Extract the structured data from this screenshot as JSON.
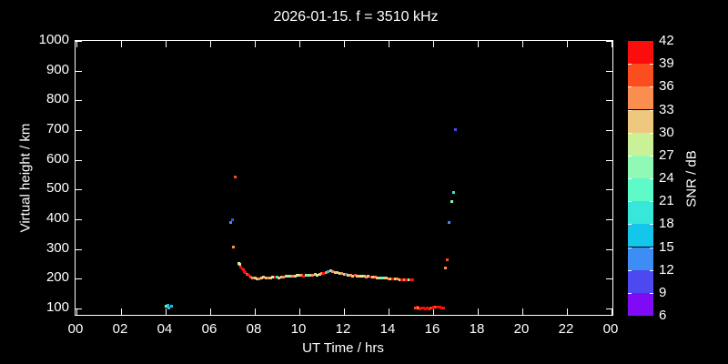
{
  "title": "2026-01-15. f = 3510 kHz",
  "colors": {
    "background": "#000000",
    "frame": "#ffffff",
    "text": "#ffffff"
  },
  "chart_data": {
    "type": "scatter",
    "title": "2026-01-15. f = 3510 kHz",
    "xlabel": "UT Time / hrs",
    "ylabel": "Virtual height / km",
    "xlim": [
      0,
      24
    ],
    "ylim": [
      75,
      1000
    ],
    "grid": false,
    "x_tick_labels": [
      "00",
      "02",
      "04",
      "06",
      "08",
      "10",
      "12",
      "14",
      "16",
      "18",
      "20",
      "22",
      "00"
    ],
    "y_tick_values": [
      100,
      200,
      300,
      400,
      500,
      600,
      700,
      800,
      900,
      1000
    ],
    "colorbar": {
      "label": "SNR / dB",
      "min": 6,
      "max": 42,
      "step": 3,
      "tick_labels": [
        "6",
        "9",
        "12",
        "15",
        "18",
        "21",
        "24",
        "27",
        "30",
        "33",
        "36",
        "39",
        "42"
      ],
      "colors_low_to_high": [
        "#7e0bf4",
        "#4c49f0",
        "#3d8df4",
        "#15c6ec",
        "#36e7da",
        "#5efac7",
        "#90f9b5",
        "#cbf198",
        "#efc87f",
        "#fa8e51",
        "#fb4d1d",
        "#fb0d0d"
      ]
    },
    "points_format": [
      "ut_hrs",
      "virtual_height_km",
      "snr_db"
    ],
    "points": [
      [
        4.0,
        108,
        25
      ],
      [
        4.1,
        112,
        16
      ],
      [
        4.16,
        102,
        16
      ],
      [
        4.25,
        108,
        16
      ],
      [
        6.92,
        388,
        13
      ],
      [
        7.02,
        397,
        10
      ],
      [
        7.05,
        308,
        34
      ],
      [
        7.14,
        542,
        37
      ],
      [
        7.27,
        252,
        28
      ],
      [
        7.33,
        247,
        28
      ],
      [
        7.38,
        240,
        40
      ],
      [
        7.43,
        234,
        40
      ],
      [
        7.48,
        229,
        40
      ],
      [
        7.53,
        224,
        40
      ],
      [
        7.58,
        220,
        40
      ],
      [
        7.65,
        215,
        37
      ],
      [
        7.73,
        211,
        40
      ],
      [
        7.82,
        207,
        37
      ],
      [
        7.9,
        204,
        34
      ],
      [
        8.0,
        202,
        31
      ],
      [
        8.1,
        201,
        31
      ],
      [
        8.2,
        200,
        34
      ],
      [
        8.3,
        204,
        31
      ],
      [
        8.4,
        207,
        31
      ],
      [
        8.5,
        203,
        31
      ],
      [
        8.6,
        202,
        34
      ],
      [
        8.7,
        203,
        31
      ],
      [
        8.8,
        206,
        28
      ],
      [
        8.9,
        207,
        40
      ],
      [
        9.0,
        205,
        19
      ],
      [
        9.1,
        204,
        31
      ],
      [
        9.2,
        205,
        31
      ],
      [
        9.3,
        206,
        34
      ],
      [
        9.4,
        208,
        31
      ],
      [
        9.5,
        210,
        25
      ],
      [
        9.6,
        210,
        31
      ],
      [
        9.7,
        208,
        34
      ],
      [
        9.8,
        210,
        31
      ],
      [
        9.9,
        212,
        28
      ],
      [
        10.0,
        213,
        31
      ],
      [
        10.1,
        212,
        34
      ],
      [
        10.2,
        210,
        40
      ],
      [
        10.3,
        212,
        31
      ],
      [
        10.4,
        213,
        22
      ],
      [
        10.5,
        212,
        31
      ],
      [
        10.6,
        213,
        34
      ],
      [
        10.7,
        215,
        31
      ],
      [
        10.8,
        213,
        28
      ],
      [
        10.9,
        215,
        31
      ],
      [
        11.0,
        217,
        34
      ],
      [
        11.1,
        219,
        40
      ],
      [
        11.2,
        222,
        34
      ],
      [
        11.3,
        225,
        16
      ],
      [
        11.4,
        227,
        31
      ],
      [
        11.5,
        225,
        34
      ],
      [
        11.6,
        222,
        31
      ],
      [
        11.7,
        220,
        31
      ],
      [
        11.8,
        218,
        25
      ],
      [
        11.9,
        217,
        34
      ],
      [
        12.0,
        215,
        31
      ],
      [
        12.1,
        214,
        13
      ],
      [
        12.2,
        213,
        31
      ],
      [
        12.3,
        212,
        34
      ],
      [
        12.4,
        210,
        31
      ],
      [
        12.5,
        212,
        37
      ],
      [
        12.6,
        210,
        31
      ],
      [
        12.7,
        209,
        31
      ],
      [
        12.8,
        210,
        28
      ],
      [
        12.9,
        208,
        31
      ],
      [
        13.0,
        207,
        34
      ],
      [
        13.1,
        208,
        31
      ],
      [
        13.2,
        207,
        40
      ],
      [
        13.3,
        205,
        31
      ],
      [
        13.4,
        205,
        34
      ],
      [
        13.5,
        203,
        31
      ],
      [
        13.6,
        204,
        31
      ],
      [
        13.7,
        203,
        22
      ],
      [
        13.8,
        202,
        31
      ],
      [
        13.9,
        202,
        31
      ],
      [
        14.0,
        201,
        34
      ],
      [
        14.1,
        200,
        31
      ],
      [
        14.2,
        200,
        40
      ],
      [
        14.3,
        198,
        31
      ],
      [
        14.4,
        198,
        34
      ],
      [
        14.5,
        197,
        31
      ],
      [
        14.6,
        197,
        40
      ],
      [
        14.7,
        196,
        34
      ],
      [
        14.8,
        195,
        40
      ],
      [
        14.9,
        196,
        25
      ],
      [
        15.0,
        197,
        40
      ],
      [
        15.08,
        195,
        40
      ],
      [
        15.22,
        101,
        37
      ],
      [
        15.28,
        104,
        40
      ],
      [
        15.34,
        102,
        34
      ],
      [
        15.4,
        100,
        40
      ],
      [
        15.48,
        103,
        40
      ],
      [
        15.56,
        102,
        40
      ],
      [
        15.64,
        100,
        40
      ],
      [
        15.72,
        102,
        40
      ],
      [
        15.8,
        100,
        40
      ],
      [
        15.88,
        102,
        37
      ],
      [
        15.96,
        103,
        40
      ],
      [
        16.04,
        105,
        40
      ],
      [
        16.12,
        104,
        37
      ],
      [
        16.2,
        105,
        40
      ],
      [
        16.3,
        104,
        40
      ],
      [
        16.4,
        103,
        40
      ],
      [
        16.48,
        102,
        40
      ],
      [
        16.57,
        235,
        34
      ],
      [
        16.65,
        263,
        37
      ],
      [
        16.73,
        390,
        13
      ],
      [
        16.82,
        461,
        25
      ],
      [
        16.9,
        489,
        19
      ],
      [
        16.98,
        703,
        10
      ]
    ]
  }
}
